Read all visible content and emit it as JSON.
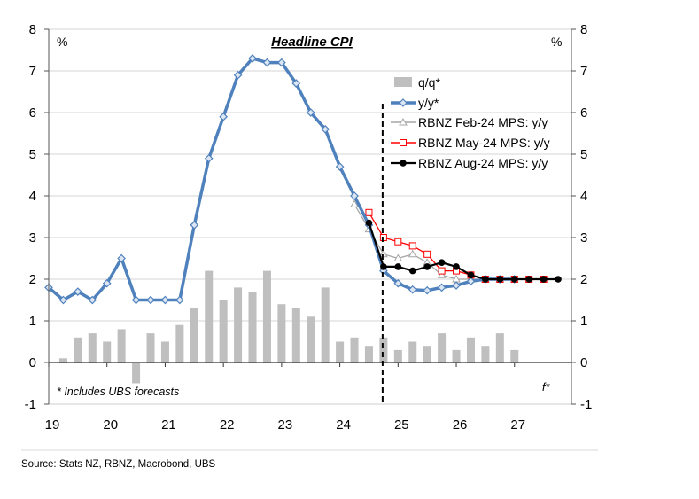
{
  "chart_data": {
    "type": "bar+line",
    "title": "Headline CPI",
    "left_unit": "%",
    "right_unit": "%",
    "footnote": "* Includes UBS forecasts",
    "forecast_marker": "f*",
    "source": "Source: Stats NZ, RBNZ, Macrobond, UBS",
    "ylim": [
      -1,
      8
    ],
    "yticks": [
      "-1",
      "0",
      "1",
      "2",
      "3",
      "4",
      "5",
      "6",
      "7",
      "8"
    ],
    "xtick_labels": [
      "19",
      "20",
      "21",
      "22",
      "23",
      "24",
      "25",
      "26",
      "27"
    ],
    "quarters": [
      "Q4-18",
      "Q1-19",
      "Q2-19",
      "Q3-19",
      "Q4-19",
      "Q1-20",
      "Q2-20",
      "Q3-20",
      "Q4-20",
      "Q1-21",
      "Q2-21",
      "Q3-21",
      "Q4-21",
      "Q1-22",
      "Q2-22",
      "Q3-22",
      "Q4-22",
      "Q1-23",
      "Q2-23",
      "Q3-23",
      "Q4-23",
      "Q1-24",
      "Q2-24",
      "Q3-24",
      "Q4-24",
      "Q1-25",
      "Q2-25",
      "Q3-25",
      "Q4-25",
      "Q1-26",
      "Q2-26",
      "Q3-26",
      "Q4-26",
      "Q1-27",
      "Q2-27",
      "Q3-27"
    ],
    "forecast_start": "Q3-24",
    "grid": true,
    "legend_position": "right",
    "series": [
      {
        "name": "q/q*",
        "kind": "bar",
        "color": "#bfbfbf",
        "start": "Q1-19",
        "values": [
          0.1,
          0.6,
          0.7,
          0.5,
          0.8,
          -0.5,
          0.7,
          0.5,
          0.9,
          1.3,
          2.2,
          1.5,
          1.8,
          1.7,
          2.2,
          1.4,
          1.3,
          1.1,
          1.8,
          0.5,
          0.6,
          0.4,
          0.6,
          0.3,
          0.5,
          0.4,
          0.7,
          0.3,
          0.6,
          0.4,
          0.7,
          0.3
        ]
      },
      {
        "name": "y/y*",
        "kind": "line",
        "marker": "diamond",
        "color": "#4f81bd",
        "start": "Q4-18",
        "values": [
          1.8,
          1.5,
          1.7,
          1.5,
          1.9,
          2.5,
          1.5,
          1.5,
          1.5,
          1.5,
          3.3,
          4.9,
          5.9,
          6.9,
          7.3,
          7.2,
          7.2,
          6.7,
          6.0,
          5.6,
          4.7,
          4.0,
          3.3,
          2.2,
          1.9,
          1.75,
          1.73,
          1.8,
          1.85,
          1.95,
          2.0,
          2.0,
          2.0
        ]
      },
      {
        "name": "RBNZ Feb-24 MPS: y/y",
        "kind": "line",
        "marker": "triangle",
        "color": "#a6a6a6",
        "start": "Q1-24",
        "values": [
          3.8,
          3.2,
          2.6,
          2.5,
          2.6,
          2.4,
          2.1,
          2.0,
          2.0,
          2.0,
          2.0,
          2.0
        ]
      },
      {
        "name": "RBNZ May-24 MPS: y/y",
        "kind": "line",
        "marker": "square",
        "color": "#ff0000",
        "start": "Q2-24",
        "values": [
          3.6,
          3.0,
          2.9,
          2.8,
          2.6,
          2.2,
          2.2,
          2.1,
          2.0,
          2.0,
          2.0,
          2.0,
          2.0
        ]
      },
      {
        "name": "RBNZ Aug-24 MPS: y/y",
        "kind": "line",
        "marker": "circle",
        "color": "#000000",
        "start": "Q2-24",
        "values": [
          3.35,
          2.3,
          2.3,
          2.2,
          2.3,
          2.4,
          2.3,
          2.1,
          2.0,
          2.0,
          2.0,
          2.0,
          2.0,
          2.0
        ]
      }
    ]
  }
}
